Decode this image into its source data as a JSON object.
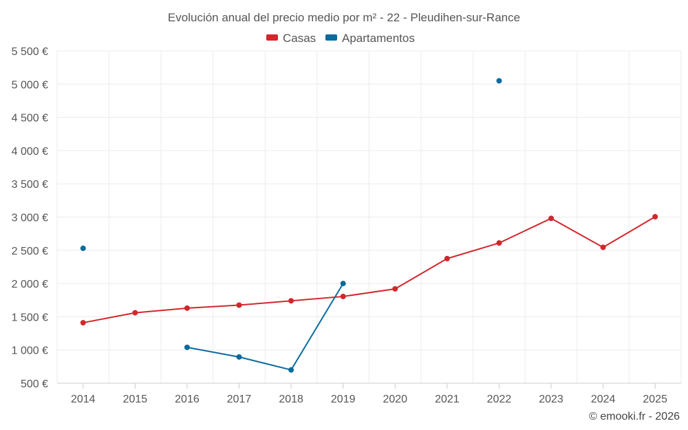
{
  "chart_data": {
    "type": "line",
    "title": "Evolución anual del precio medio por m² - 22 - Pleudihen-sur-Rance",
    "categories": [
      "2014",
      "2015",
      "2016",
      "2017",
      "2018",
      "2019",
      "2020",
      "2021",
      "2022",
      "2023",
      "2024",
      "2025"
    ],
    "ylim": [
      500,
      5500
    ],
    "yticks": [
      500,
      1000,
      1500,
      2000,
      2500,
      3000,
      3500,
      4000,
      4500,
      5000,
      5500
    ],
    "ytick_labels": [
      "500 €",
      "1 000 €",
      "1 500 €",
      "2 000 €",
      "2 500 €",
      "3 000 €",
      "3 500 €",
      "4 000 €",
      "4 500 €",
      "5 000 €",
      "5 500 €"
    ],
    "xlabel": "",
    "ylabel": "",
    "grid": true,
    "legend_position": "top-center",
    "series": [
      {
        "name": "Casas",
        "color": "#d3262b",
        "values": [
          1410,
          1560,
          1630,
          1675,
          1740,
          1805,
          1920,
          2375,
          2610,
          2980,
          2545,
          3005
        ]
      },
      {
        "name": "Apartamentos",
        "color": "#0b6a9e",
        "values": [
          2530,
          null,
          1040,
          895,
          700,
          2000,
          null,
          null,
          5050,
          null,
          null,
          null
        ]
      }
    ]
  },
  "credit": "© emooki.fr - 2026"
}
